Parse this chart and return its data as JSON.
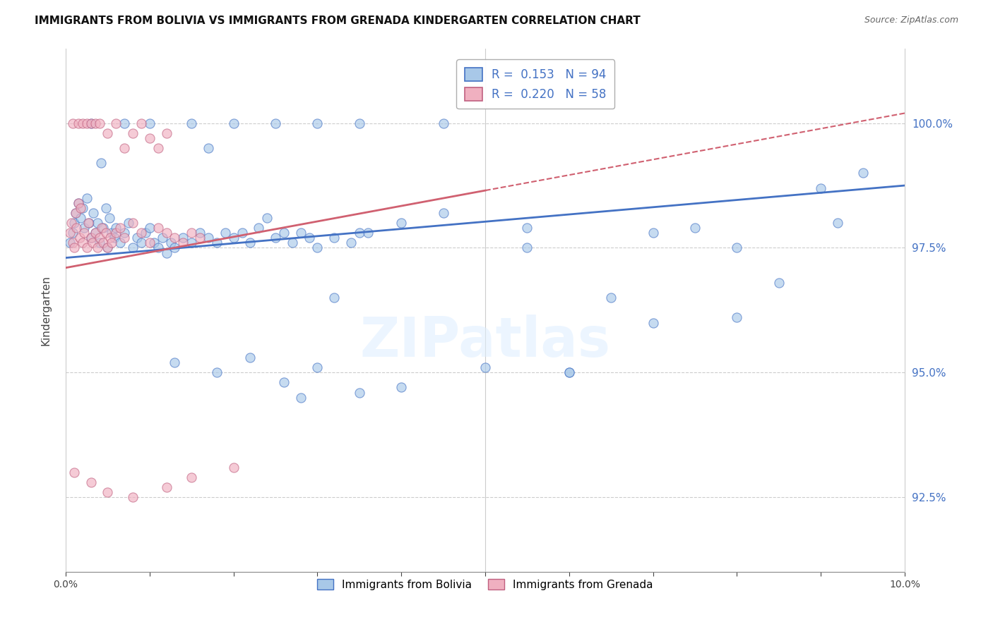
{
  "title": "IMMIGRANTS FROM BOLIVIA VS IMMIGRANTS FROM GRENADA KINDERGARTEN CORRELATION CHART",
  "source": "Source: ZipAtlas.com",
  "ylabel": "Kindergarten",
  "y_ticks": [
    92.5,
    95.0,
    97.5,
    100.0
  ],
  "y_tick_labels": [
    "92.5%",
    "95.0%",
    "97.5%",
    "100.0%"
  ],
  "x_range": [
    0.0,
    10.0
  ],
  "y_range": [
    91.0,
    101.5
  ],
  "legend_R_N_1": "R =  0.153   N = 94",
  "legend_R_N_2": "R =  0.220   N = 58",
  "legend_label1": "Immigrants from Bolivia",
  "legend_label2": "Immigrants from Grenada",
  "color_bolivia": "#a8c8e8",
  "color_grenada": "#f0b0c0",
  "trendline_bolivia_color": "#4472c4",
  "trendline_grenada_color": "#d06070",
  "bolivia_x": [
    0.05,
    0.08,
    0.1,
    0.12,
    0.15,
    0.18,
    0.2,
    0.22,
    0.25,
    0.28,
    0.3,
    0.33,
    0.35,
    0.38,
    0.4,
    0.42,
    0.45,
    0.48,
    0.5,
    0.52,
    0.55,
    0.58,
    0.6,
    0.65,
    0.7,
    0.75,
    0.8,
    0.85,
    0.9,
    0.95,
    1.0,
    1.05,
    1.1,
    1.15,
    1.2,
    1.25,
    1.3,
    1.4,
    1.5,
    1.6,
    1.7,
    1.8,
    1.9,
    2.0,
    2.1,
    2.2,
    2.3,
    2.5,
    2.6,
    2.7,
    2.8,
    2.9,
    3.0,
    3.2,
    3.4,
    3.5,
    1.7,
    2.4,
    3.6,
    4.0,
    4.5,
    5.0,
    5.5,
    6.0,
    6.5,
    7.0,
    7.5,
    8.0,
    8.5,
    9.0,
    9.5,
    2.8,
    1.3,
    1.8,
    2.2,
    2.6,
    3.0,
    3.5,
    4.0,
    5.5,
    6.0,
    7.0,
    8.0,
    9.2,
    3.2,
    0.3,
    0.7,
    1.0,
    1.5,
    2.0,
    2.5,
    3.0,
    3.5,
    4.5
  ],
  "bolivia_y": [
    97.6,
    97.8,
    98.0,
    98.2,
    98.4,
    98.1,
    98.3,
    97.9,
    98.5,
    98.0,
    97.7,
    98.2,
    97.8,
    98.0,
    97.6,
    99.2,
    97.9,
    98.3,
    97.5,
    98.1,
    97.8,
    97.7,
    97.9,
    97.6,
    97.8,
    98.0,
    97.5,
    97.7,
    97.6,
    97.8,
    97.9,
    97.6,
    97.5,
    97.7,
    97.4,
    97.6,
    97.5,
    97.7,
    97.6,
    97.8,
    97.7,
    97.6,
    97.8,
    97.7,
    97.8,
    97.6,
    97.9,
    97.7,
    97.8,
    97.6,
    97.8,
    97.7,
    97.5,
    97.7,
    97.6,
    97.8,
    99.5,
    98.1,
    97.8,
    98.0,
    98.2,
    95.1,
    97.9,
    95.0,
    96.5,
    96.0,
    97.9,
    96.1,
    96.8,
    98.7,
    99.0,
    94.5,
    95.2,
    95.0,
    95.3,
    94.8,
    95.1,
    94.6,
    94.7,
    97.5,
    95.0,
    97.8,
    97.5,
    98.0,
    96.5,
    100.0,
    100.0,
    100.0,
    100.0,
    100.0,
    100.0,
    100.0,
    100.0,
    100.0
  ],
  "grenada_x": [
    0.05,
    0.07,
    0.08,
    0.1,
    0.12,
    0.13,
    0.15,
    0.17,
    0.18,
    0.2,
    0.22,
    0.25,
    0.27,
    0.3,
    0.32,
    0.35,
    0.38,
    0.4,
    0.43,
    0.45,
    0.48,
    0.5,
    0.53,
    0.55,
    0.6,
    0.65,
    0.7,
    0.8,
    0.9,
    1.0,
    1.1,
    1.2,
    1.3,
    1.4,
    1.5,
    1.6,
    0.08,
    0.15,
    0.2,
    0.25,
    0.3,
    0.35,
    0.4,
    0.5,
    0.6,
    0.7,
    0.8,
    0.9,
    1.0,
    1.1,
    1.2,
    0.1,
    0.3,
    0.5,
    0.8,
    1.2,
    1.5,
    2.0
  ],
  "grenada_y": [
    97.8,
    98.0,
    97.6,
    97.5,
    98.2,
    97.9,
    98.4,
    97.7,
    98.3,
    97.6,
    97.8,
    97.5,
    98.0,
    97.7,
    97.6,
    97.8,
    97.5,
    97.7,
    97.9,
    97.6,
    97.8,
    97.5,
    97.7,
    97.6,
    97.8,
    97.9,
    97.7,
    98.0,
    97.8,
    97.6,
    97.9,
    97.8,
    97.7,
    97.6,
    97.8,
    97.7,
    100.0,
    100.0,
    100.0,
    100.0,
    100.0,
    100.0,
    100.0,
    99.8,
    100.0,
    99.5,
    99.8,
    100.0,
    99.7,
    99.5,
    99.8,
    93.0,
    92.8,
    92.6,
    92.5,
    92.7,
    92.9,
    93.1
  ]
}
